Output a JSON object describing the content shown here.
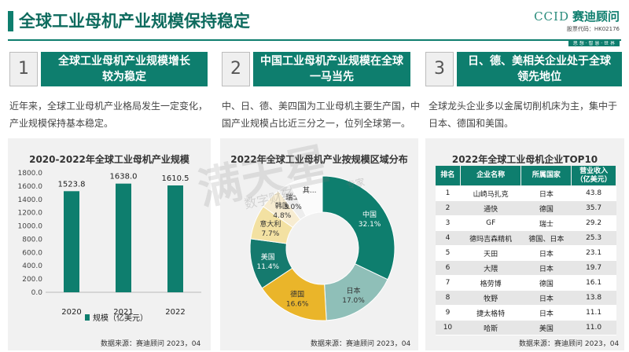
{
  "header": {
    "title": "全球工业母机产业规模保持稳定",
    "logo_en": "CCID",
    "logo_cn": "赛迪顾问",
    "logo_code": "股票代码：HK02176",
    "logo_slogan": "思 想 · 智 慧 · 世 界"
  },
  "columns": [
    {
      "num": "1",
      "title_line1": "全球工业母机产业规模增长",
      "title_line2": "较为稳定",
      "desc": "近年来，全球工业母机产业格局发生一定变化，产业规模保持基本稳定。"
    },
    {
      "num": "2",
      "title_line1": "中国工业母机产业规模在全球",
      "title_line2": "一马当先",
      "desc": "中、日、德、美四国为工业母机主要生产国，中国产业规模占比近三分之一，位列全球第一。"
    },
    {
      "num": "3",
      "title_line1": "日、德、美相关企业处于全球",
      "title_line2": "领先地位",
      "desc": "全球龙头企业多以金属切削机床为主，集中于日本、德国和美国。"
    }
  ],
  "source": "数据来源：赛迪顾问 2023，04",
  "watermark": {
    "big": "满天星",
    "small": "数字财经",
    "tag": "专家"
  },
  "chart_data": [
    {
      "type": "bar",
      "title": "2020-2022年全球工业母机产业规模",
      "categories": [
        "2020",
        "2021",
        "2022"
      ],
      "series": [
        {
          "name": "规模（亿美元）",
          "values": [
            1523.8,
            1638.0,
            1610.5
          ]
        }
      ],
      "value_labels": [
        "1523.8",
        "1638.0",
        "1610.5"
      ],
      "yticks": [
        "0.0",
        "200.0",
        "400.0",
        "600.0",
        "800.0",
        "1000.0",
        "1200.0",
        "1400.0",
        "1600.0",
        "1800.0"
      ],
      "ylim": [
        0,
        1800
      ],
      "legend": "bottom",
      "color": "#0e7e6e"
    },
    {
      "type": "pie",
      "title": "2022年全球工业母机产业按规模区域分布",
      "donut": true,
      "slices": [
        {
          "name": "中国",
          "value": 32.1,
          "label": "32.1%",
          "color": "#0e7e6e"
        },
        {
          "name": "日本",
          "value": 17.0,
          "label": "17.0%",
          "color": "#8fbfb8"
        },
        {
          "name": "德国",
          "value": 16.6,
          "label": "16.6%",
          "color": "#eab52a"
        },
        {
          "name": "美国",
          "value": 11.4,
          "label": "11.4%",
          "color": "#157a6e"
        },
        {
          "name": "意大利",
          "value": 7.7,
          "label": "7.7%",
          "color": "#f3e1a2"
        },
        {
          "name": "韩国",
          "value": 4.8,
          "label": "4.8%",
          "color": "#f7ecd1"
        },
        {
          "name": "瑞士",
          "value": 3.0,
          "label": "3.0%",
          "color": "#ededed"
        },
        {
          "name": "其...",
          "value": 7.4,
          "label": "",
          "color": "#fbfbfb"
        }
      ]
    },
    {
      "type": "table",
      "title": "2022年全球工业母机企业TOP10",
      "headers": [
        "排名",
        "企业名称",
        "所属国家",
        "营业收入\n（亿美元）"
      ],
      "rows": [
        [
          "1",
          "山崎马扎克",
          "日本",
          "43.8"
        ],
        [
          "2",
          "通快",
          "德国",
          "35.7"
        ],
        [
          "3",
          "GF",
          "瑞士",
          "29.2"
        ],
        [
          "4",
          "德玛吉森精机",
          "德国、日本",
          "25.3"
        ],
        [
          "5",
          "天田",
          "日本",
          "23.1"
        ],
        [
          "6",
          "大隈",
          "日本",
          "19.7"
        ],
        [
          "7",
          "格劳博",
          "德国",
          "16.1"
        ],
        [
          "8",
          "牧野",
          "日本",
          "13.8"
        ],
        [
          "9",
          "捷太格特",
          "日本",
          "11.1"
        ],
        [
          "10",
          "哈斯",
          "美国",
          "11.0"
        ]
      ]
    }
  ]
}
